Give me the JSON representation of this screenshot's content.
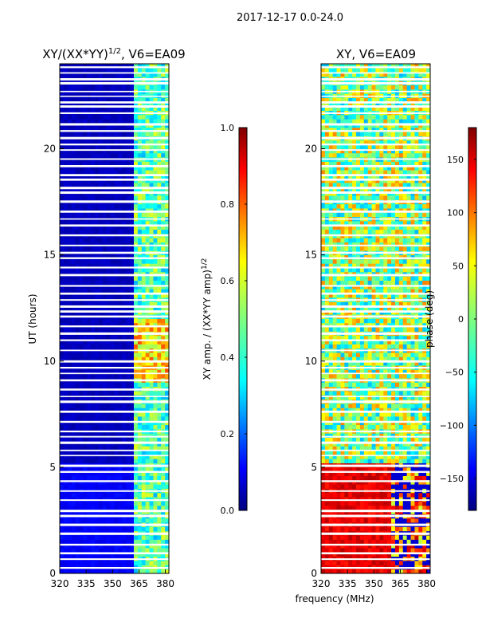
{
  "figure": {
    "suptitle": "2017-12-17 0.0-24.0",
    "xlabel": "frequency (MHz)"
  },
  "chart_data": [
    {
      "type": "heatmap",
      "title": "XY/(XX*YY)",
      "title_superscript": "1/2",
      "title_suffix": ", V6=EA09",
      "ylabel": "UT (hours)",
      "xlim": [
        320,
        382
      ],
      "ylim": [
        0,
        24
      ],
      "xticks": [
        320,
        335,
        350,
        365,
        380
      ],
      "yticks": [
        0,
        5,
        10,
        15,
        20
      ],
      "colorbar": {
        "label": "XY amp. / (XX*YY amp)",
        "label_superscript": "1/2",
        "range": [
          0.0,
          1.0
        ],
        "ticks": [
          "0.0",
          "0.2",
          "0.4",
          "0.6",
          "0.8",
          "1.0"
        ],
        "tick_values": [
          0.0,
          0.2,
          0.4,
          0.6,
          0.8,
          1.0
        ],
        "colormap": "jet"
      },
      "description_values": {
        "low_band_320_362": 0.05,
        "high_band_362_382": 0.45
      }
    },
    {
      "type": "heatmap",
      "title": "XY, V6=EA09",
      "ylabel": "",
      "xlim": [
        320,
        382
      ],
      "ylim": [
        0,
        24
      ],
      "xticks": [
        320,
        335,
        350,
        365,
        380
      ],
      "yticks": [
        0,
        5,
        10,
        15,
        20
      ],
      "colorbar": {
        "label": "phase (deg)",
        "range": [
          -180,
          180
        ],
        "ticks": [
          "−150",
          "−100",
          "−50",
          "0",
          "50",
          "100",
          "150"
        ],
        "tick_values": [
          -150,
          -100,
          -50,
          0,
          50,
          100,
          150
        ],
        "colormap": "jet"
      }
    }
  ],
  "colors": {
    "jet": [
      "#00007f",
      "#0000ff",
      "#007fff",
      "#00ffff",
      "#7fff7f",
      "#ffff00",
      "#ff7f00",
      "#ff0000",
      "#7f0000"
    ]
  }
}
